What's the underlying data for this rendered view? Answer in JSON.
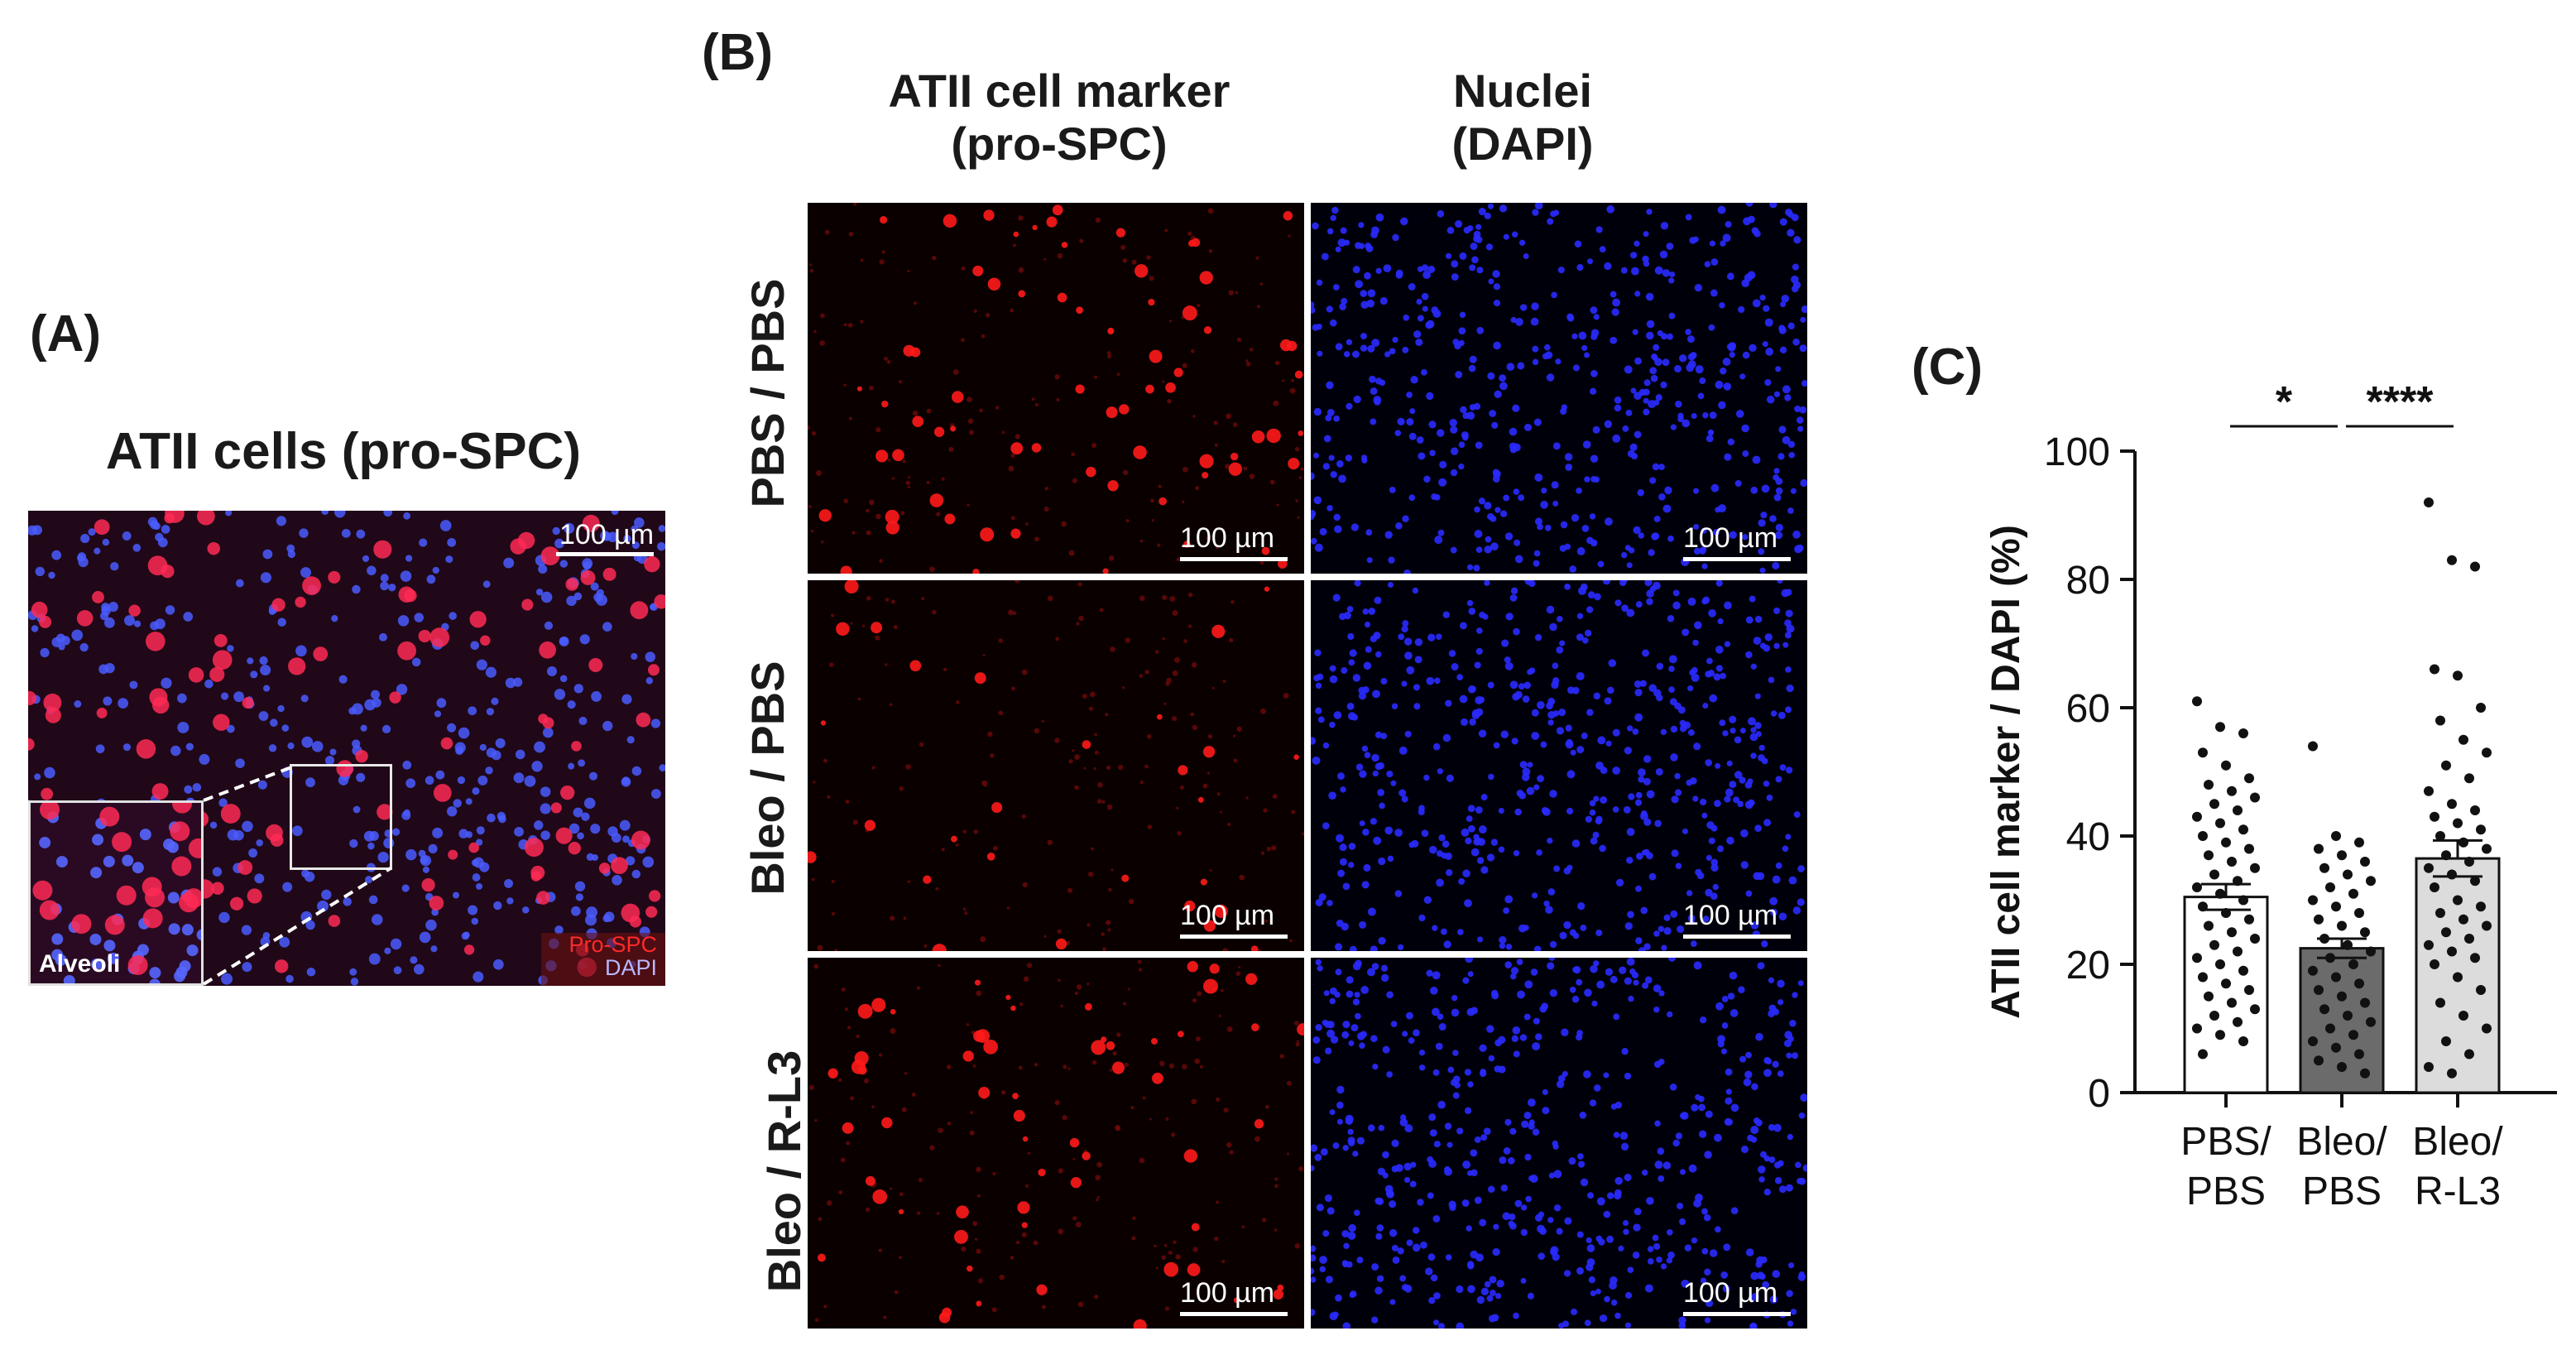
{
  "panel_a": {
    "label": "(A)",
    "title": "ATII cells (pro-SPC)",
    "scalebar": "100 µm",
    "inset_label": "Alveoli",
    "legend_red": "Pro-SPC",
    "legend_blue": "DAPI"
  },
  "panel_b": {
    "label": "(B)",
    "col1_line1": "ATII cell marker",
    "col1_line2": "(pro-SPC)",
    "col2_line1": "Nuclei",
    "col2_line2": "(DAPI)",
    "rows": [
      "PBS / PBS",
      "Bleo / PBS",
      "Bleo / R-L3"
    ],
    "scalebar": "100 µm",
    "colors": {
      "red_channel": "#ff1a1a",
      "blue_channel": "#2a2aff"
    }
  },
  "panel_c": {
    "label": "(C)",
    "sig1": "*",
    "sig2": "****"
  },
  "chart_data": {
    "type": "bar",
    "title": "",
    "xlabel": "",
    "ylabel": "ATII cell marker / DAPI (%)",
    "ylim": [
      0,
      100
    ],
    "yticks": [
      0,
      20,
      40,
      60,
      80,
      100
    ],
    "categories": [
      "PBS/\nPBS",
      "Bleo/\nPBS",
      "Bleo/\nR-L3"
    ],
    "category_lines": [
      [
        "PBS/",
        "PBS"
      ],
      [
        "Bleo/",
        "PBS"
      ],
      [
        "Bleo/",
        "R-L3"
      ]
    ],
    "values": [
      30.5,
      22.5,
      36.5
    ],
    "errors": [
      2.0,
      1.5,
      2.8
    ],
    "bar_colors": [
      "#ffffff",
      "#6b6b6b",
      "#dcdcdc"
    ],
    "points": [
      [
        61,
        57,
        56,
        53,
        51,
        49,
        48,
        47,
        46,
        45,
        44,
        43,
        42,
        41,
        40,
        39,
        38,
        37,
        36,
        35,
        34,
        33,
        32,
        31,
        30,
        29,
        28,
        27,
        26,
        25,
        24,
        23,
        22,
        21,
        20,
        19,
        18,
        17,
        16,
        15,
        14,
        13,
        12,
        11,
        10,
        9,
        8,
        6
      ],
      [
        54,
        40,
        39,
        38,
        37,
        36,
        35,
        34,
        33,
        32,
        31,
        30,
        29,
        28,
        27,
        26,
        25,
        24,
        23,
        22,
        21,
        20,
        19,
        18,
        17,
        16,
        15,
        14,
        13,
        12,
        11,
        10,
        9,
        8,
        7,
        6,
        5,
        4,
        3
      ],
      [
        92,
        83,
        82,
        66,
        65,
        60,
        58,
        55,
        53,
        51,
        49,
        47,
        45,
        44,
        43,
        42,
        41,
        40,
        39,
        38,
        37,
        36,
        35,
        34,
        33,
        32,
        30,
        29,
        28,
        27,
        26,
        25,
        24,
        23,
        22,
        21,
        20,
        18,
        16,
        14,
        12,
        10,
        8,
        6,
        4,
        3
      ]
    ],
    "significance": [
      {
        "from": 0,
        "to": 1,
        "label": "*"
      },
      {
        "from": 1,
        "to": 2,
        "label": "****"
      }
    ]
  }
}
